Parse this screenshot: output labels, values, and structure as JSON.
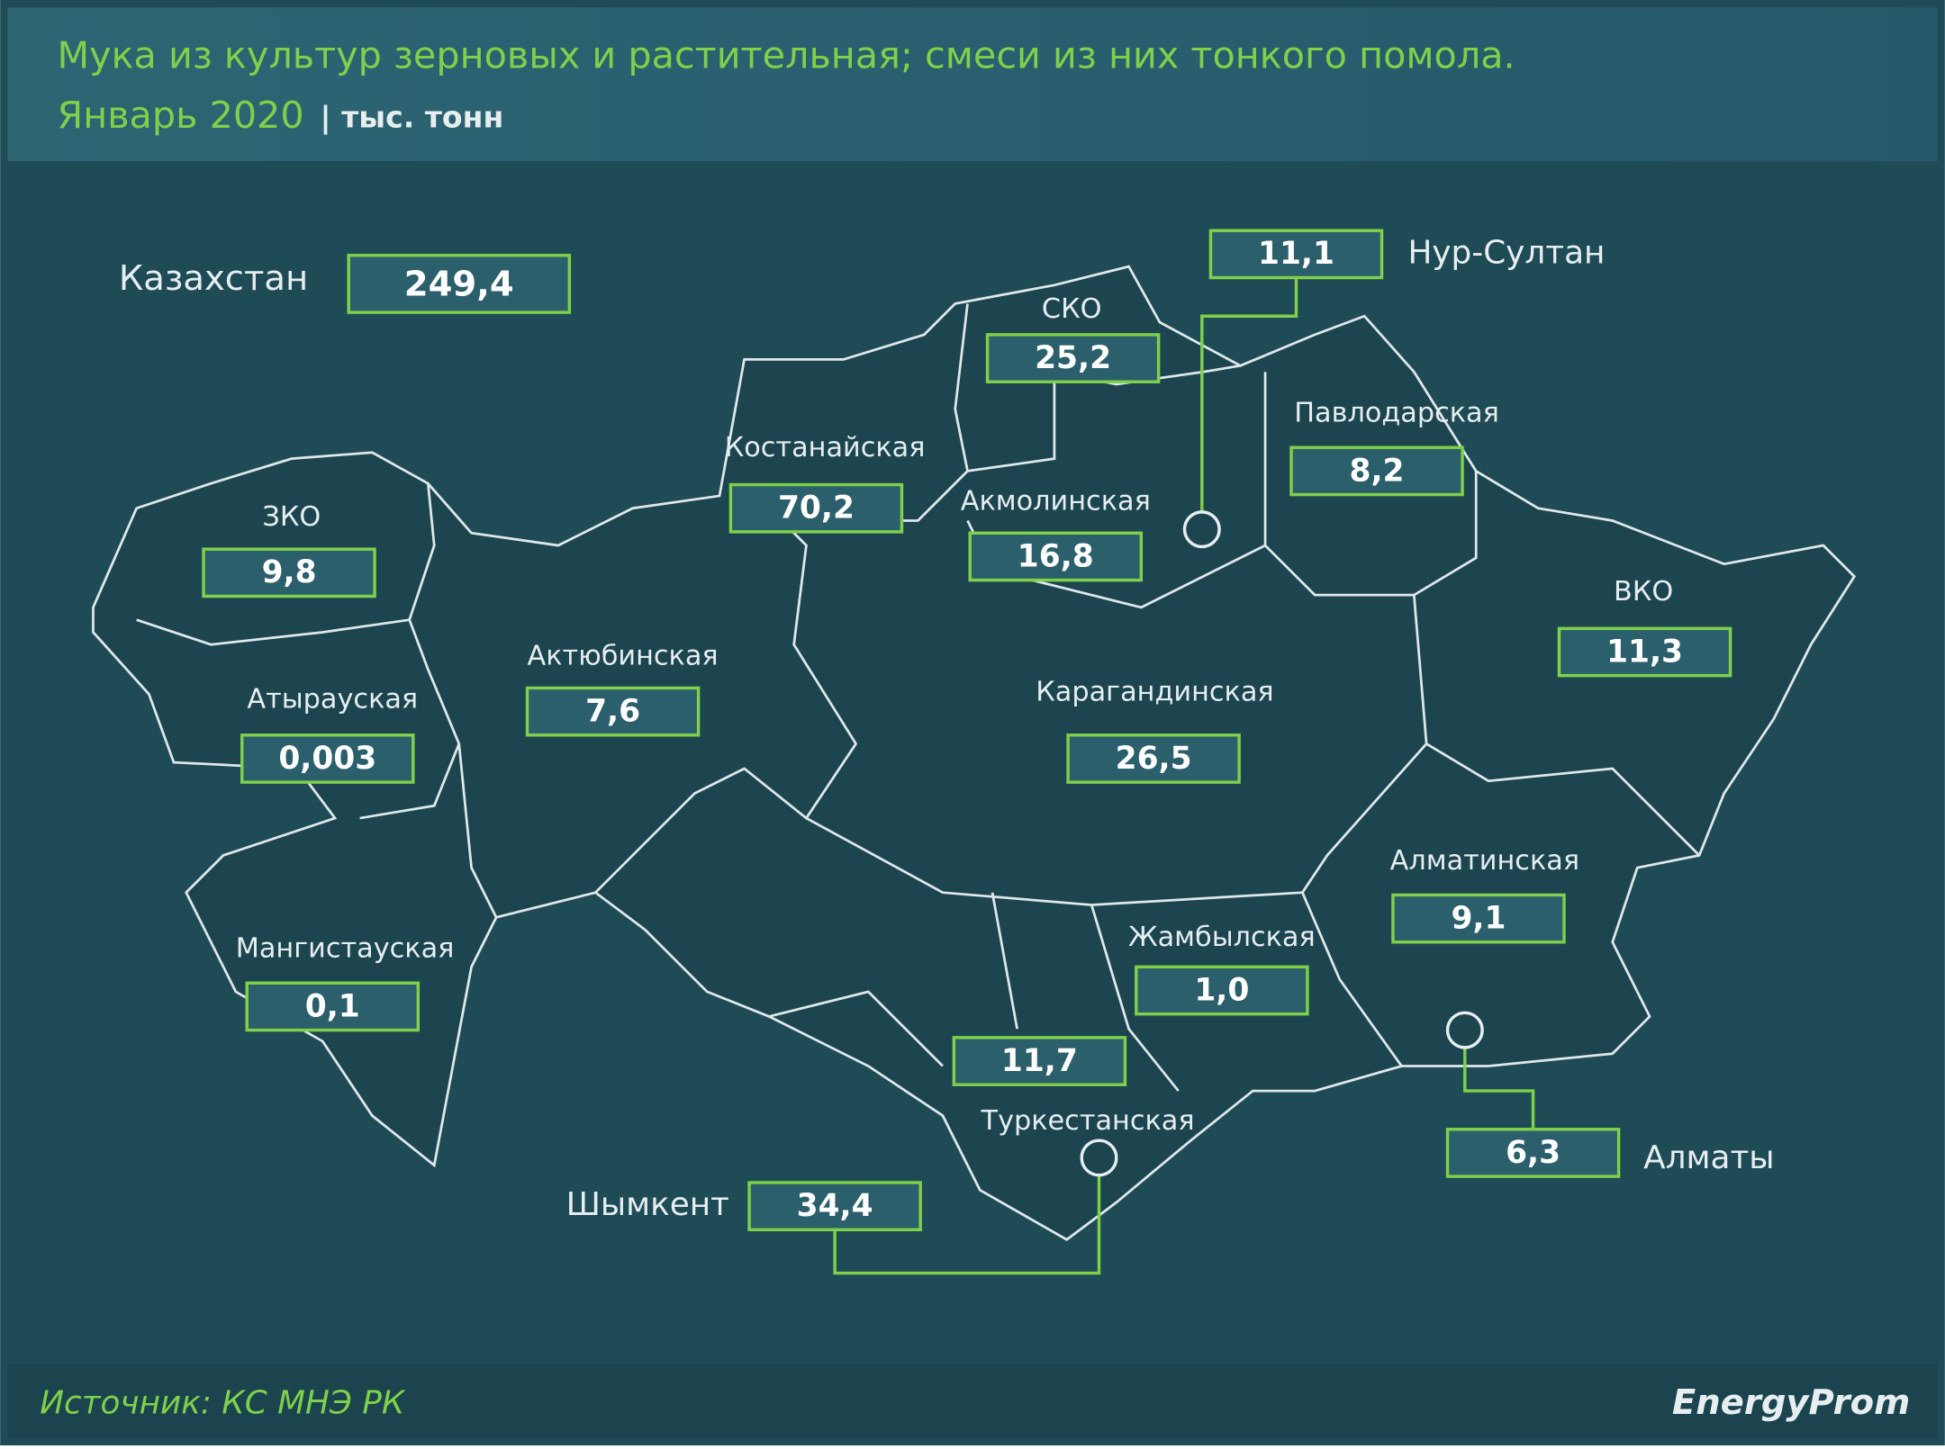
{
  "header": {
    "title": "Мука из культур зерновых и растительная; смеси из них тонкого помола.",
    "period": "Январь 2020",
    "unit": "| тыс. тонн"
  },
  "total": {
    "label": "Казахстан",
    "value": "249,4"
  },
  "regions": [
    {
      "name": "ЗКО",
      "value": "9,8"
    },
    {
      "name": "Атырауская",
      "value": "0,003"
    },
    {
      "name": "Актюбинская",
      "value": "7,6"
    },
    {
      "name": "Мангистауская",
      "value": "0,1"
    },
    {
      "name": "Костанайская",
      "value": "70,2"
    },
    {
      "name": "СКО",
      "value": "25,2"
    },
    {
      "name": "Акмолинская",
      "value": "16,8"
    },
    {
      "name": "Павлодарская",
      "value": "8,2"
    },
    {
      "name": "ВКО",
      "value": "11,3"
    },
    {
      "name": "Карагандинская",
      "value": "26,5"
    },
    {
      "name": "Алматинская",
      "value": "9,1"
    },
    {
      "name": "Жамбылская",
      "value": "1,0"
    },
    {
      "name": "Туркестанская",
      "value": "11,7"
    }
  ],
  "cities": [
    {
      "name": "Нур-Султан",
      "value": "11,1"
    },
    {
      "name": "Шымкент",
      "value": "34,4"
    },
    {
      "name": "Алматы",
      "value": "6,3"
    }
  ],
  "footer": {
    "source": "Источник: КС МНЭ РК",
    "brand": "EnergyProm"
  }
}
